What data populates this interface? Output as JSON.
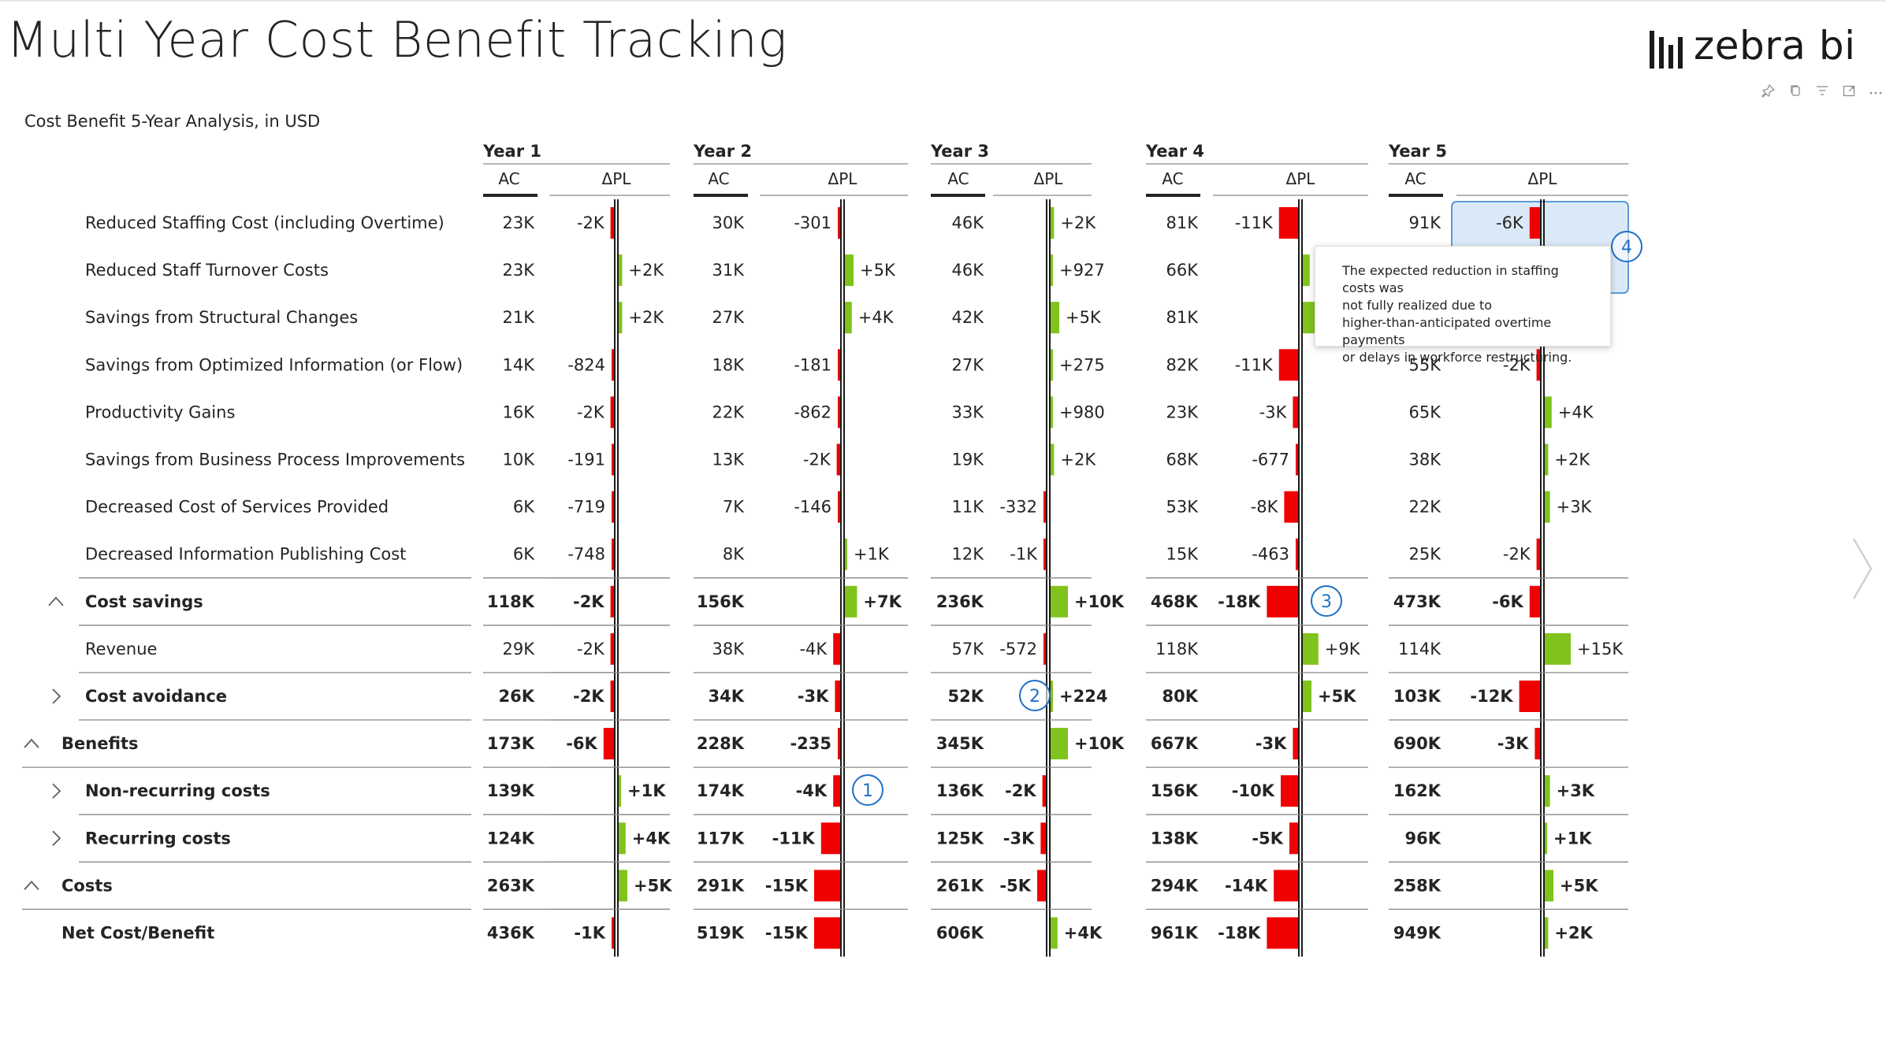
{
  "title": "Multi Year Cost Benefit Tracking",
  "logo": {
    "text": "zebra bi"
  },
  "visual_header": {
    "icons": [
      "pin-icon",
      "copy-icon",
      "filter-icon",
      "focus-mode-icon",
      "more-options-icon"
    ]
  },
  "subtitle": "Cost Benefit 5-Year Analysis, in USD",
  "column_labels": {
    "ac": "AC",
    "dpl": "ΔPL"
  },
  "years": [
    "Year 1",
    "Year 2",
    "Year 3",
    "Year 4",
    "Year 5"
  ],
  "rows": [
    {
      "label": "Reduced Staffing Cost (including Overtime)",
      "level": 2,
      "bold": false,
      "expand": "none",
      "sep": false,
      "cells": [
        {
          "ac": "23K",
          "dpl": "-2K",
          "v": -2
        },
        {
          "ac": "30K",
          "dpl": "-301",
          "v": -0.301
        },
        {
          "ac": "46K",
          "dpl": "+2K",
          "v": 2
        },
        {
          "ac": "81K",
          "dpl": "-11K",
          "v": -11
        },
        {
          "ac": "91K",
          "dpl": "-6K",
          "v": -6
        }
      ]
    },
    {
      "label": "Reduced Staff Turnover Costs",
      "level": 2,
      "bold": false,
      "expand": "none",
      "sep": false,
      "cells": [
        {
          "ac": "23K",
          "dpl": "+2K",
          "v": 2
        },
        {
          "ac": "31K",
          "dpl": "+5K",
          "v": 5
        },
        {
          "ac": "46K",
          "dpl": "+927",
          "v": 0.927
        },
        {
          "ac": "66K",
          "dpl": "+4K",
          "v": 4
        },
        {
          "ac": "",
          "dpl": "",
          "v": 0
        }
      ]
    },
    {
      "label": "Savings from Structural Changes",
      "level": 2,
      "bold": false,
      "expand": "none",
      "sep": false,
      "cells": [
        {
          "ac": "21K",
          "dpl": "+2K",
          "v": 2
        },
        {
          "ac": "27K",
          "dpl": "+4K",
          "v": 4
        },
        {
          "ac": "42K",
          "dpl": "+5K",
          "v": 5
        },
        {
          "ac": "81K",
          "dpl": "",
          "v": 12
        },
        {
          "ac": "",
          "dpl": "",
          "v": 0
        }
      ]
    },
    {
      "label": "Savings from Optimized Information (or Flow)",
      "level": 2,
      "bold": false,
      "expand": "none",
      "sep": false,
      "cells": [
        {
          "ac": "14K",
          "dpl": "-824",
          "v": -0.824
        },
        {
          "ac": "18K",
          "dpl": "-181",
          "v": -0.181
        },
        {
          "ac": "27K",
          "dpl": "+275",
          "v": 0.275
        },
        {
          "ac": "82K",
          "dpl": "-11K",
          "v": -11
        },
        {
          "ac": "55K",
          "dpl": "-2K",
          "v": -2
        }
      ]
    },
    {
      "label": "Productivity Gains",
      "level": 2,
      "bold": false,
      "expand": "none",
      "sep": false,
      "cells": [
        {
          "ac": "16K",
          "dpl": "-2K",
          "v": -2
        },
        {
          "ac": "22K",
          "dpl": "-862",
          "v": -0.862
        },
        {
          "ac": "33K",
          "dpl": "+980",
          "v": 0.98
        },
        {
          "ac": "23K",
          "dpl": "-3K",
          "v": -3
        },
        {
          "ac": "65K",
          "dpl": "+4K",
          "v": 4
        }
      ]
    },
    {
      "label": "Savings from Business Process Improvements",
      "level": 2,
      "bold": false,
      "expand": "none",
      "sep": false,
      "cells": [
        {
          "ac": "10K",
          "dpl": "-191",
          "v": -0.191
        },
        {
          "ac": "13K",
          "dpl": "-2K",
          "v": -2
        },
        {
          "ac": "19K",
          "dpl": "+2K",
          "v": 2
        },
        {
          "ac": "68K",
          "dpl": "-677",
          "v": -0.677
        },
        {
          "ac": "38K",
          "dpl": "+2K",
          "v": 2
        }
      ]
    },
    {
      "label": "Decreased Cost of Services Provided",
      "level": 2,
      "bold": false,
      "expand": "none",
      "sep": false,
      "cells": [
        {
          "ac": "6K",
          "dpl": "-719",
          "v": -0.719
        },
        {
          "ac": "7K",
          "dpl": "-146",
          "v": -0.146
        },
        {
          "ac": "11K",
          "dpl": "-332",
          "v": -0.332
        },
        {
          "ac": "53K",
          "dpl": "-8K",
          "v": -8
        },
        {
          "ac": "22K",
          "dpl": "+3K",
          "v": 3
        }
      ]
    },
    {
      "label": "Decreased Information Publishing Cost",
      "level": 2,
      "bold": false,
      "expand": "none",
      "sep": true,
      "cells": [
        {
          "ac": "6K",
          "dpl": "-748",
          "v": -0.748
        },
        {
          "ac": "8K",
          "dpl": "+1K",
          "v": 1
        },
        {
          "ac": "12K",
          "dpl": "-1K",
          "v": -1
        },
        {
          "ac": "15K",
          "dpl": "-463",
          "v": -0.463
        },
        {
          "ac": "25K",
          "dpl": "-2K",
          "v": -2
        }
      ]
    },
    {
      "label": "Cost savings",
      "level": 1,
      "bold": true,
      "expand": "expanded",
      "sep": true,
      "cells": [
        {
          "ac": "118K",
          "dpl": "-2K",
          "v": -2
        },
        {
          "ac": "156K",
          "dpl": "+7K",
          "v": 7
        },
        {
          "ac": "236K",
          "dpl": "+10K",
          "v": 10
        },
        {
          "ac": "468K",
          "dpl": "-18K",
          "v": -18
        },
        {
          "ac": "473K",
          "dpl": "-6K",
          "v": -6
        }
      ]
    },
    {
      "label": "Revenue",
      "level": 2,
      "bold": false,
      "expand": "none",
      "sep": true,
      "cells": [
        {
          "ac": "29K",
          "dpl": "-2K",
          "v": -2
        },
        {
          "ac": "38K",
          "dpl": "-4K",
          "v": -4
        },
        {
          "ac": "57K",
          "dpl": "-572",
          "v": -0.572
        },
        {
          "ac": "118K",
          "dpl": "+9K",
          "v": 9
        },
        {
          "ac": "114K",
          "dpl": "+15K",
          "v": 15
        }
      ]
    },
    {
      "label": "Cost avoidance",
      "level": 1,
      "bold": true,
      "expand": "collapsed",
      "sep": true,
      "cells": [
        {
          "ac": "26K",
          "dpl": "-2K",
          "v": -2
        },
        {
          "ac": "34K",
          "dpl": "-3K",
          "v": -3
        },
        {
          "ac": "52K",
          "dpl": "+224",
          "v": 0.224
        },
        {
          "ac": "80K",
          "dpl": "+5K",
          "v": 5
        },
        {
          "ac": "103K",
          "dpl": "-12K",
          "v": -12
        }
      ]
    },
    {
      "label": "Benefits",
      "level": 0,
      "bold": true,
      "expand": "expanded",
      "sep": true,
      "cells": [
        {
          "ac": "173K",
          "dpl": "-6K",
          "v": -6
        },
        {
          "ac": "228K",
          "dpl": "-235",
          "v": -0.235
        },
        {
          "ac": "345K",
          "dpl": "+10K",
          "v": 10
        },
        {
          "ac": "667K",
          "dpl": "-3K",
          "v": -3
        },
        {
          "ac": "690K",
          "dpl": "-3K",
          "v": -3
        }
      ]
    },
    {
      "label": "Non-recurring costs",
      "level": 1,
      "bold": true,
      "expand": "collapsed",
      "sep": true,
      "cells": [
        {
          "ac": "139K",
          "dpl": "+1K",
          "v": 1
        },
        {
          "ac": "174K",
          "dpl": "-4K",
          "v": -4
        },
        {
          "ac": "136K",
          "dpl": "-2K",
          "v": -2
        },
        {
          "ac": "156K",
          "dpl": "-10K",
          "v": -10
        },
        {
          "ac": "162K",
          "dpl": "+3K",
          "v": 3
        }
      ]
    },
    {
      "label": "Recurring costs",
      "level": 1,
      "bold": true,
      "expand": "collapsed",
      "sep": true,
      "cells": [
        {
          "ac": "124K",
          "dpl": "+4K",
          "v": 4
        },
        {
          "ac": "117K",
          "dpl": "-11K",
          "v": -11
        },
        {
          "ac": "125K",
          "dpl": "-3K",
          "v": -3
        },
        {
          "ac": "138K",
          "dpl": "-5K",
          "v": -5
        },
        {
          "ac": "96K",
          "dpl": "+1K",
          "v": 1
        }
      ]
    },
    {
      "label": "Costs",
      "level": 0,
      "bold": true,
      "expand": "expanded",
      "sep": true,
      "cells": [
        {
          "ac": "263K",
          "dpl": "+5K",
          "v": 5
        },
        {
          "ac": "291K",
          "dpl": "-15K",
          "v": -15
        },
        {
          "ac": "261K",
          "dpl": "-5K",
          "v": -5
        },
        {
          "ac": "294K",
          "dpl": "-14K",
          "v": -14
        },
        {
          "ac": "258K",
          "dpl": "+5K",
          "v": 5
        }
      ]
    },
    {
      "label": "Net Cost/Benefit",
      "level": 0,
      "bold": true,
      "expand": "none",
      "sep": false,
      "cells": [
        {
          "ac": "436K",
          "dpl": "-1K",
          "v": -1
        },
        {
          "ac": "519K",
          "dpl": "-15K",
          "v": -15
        },
        {
          "ac": "606K",
          "dpl": "+4K",
          "v": 4
        },
        {
          "ac": "961K",
          "dpl": "-18K",
          "v": -18
        },
        {
          "ac": "949K",
          "dpl": "+2K",
          "v": 2
        }
      ]
    }
  ],
  "comments": [
    {
      "number": "1",
      "year": 1,
      "row": 12
    },
    {
      "number": "2",
      "year": 2,
      "row": 10
    },
    {
      "number": "3",
      "year": 3,
      "row": 8
    },
    {
      "number": "4",
      "year": 4,
      "row": 0
    }
  ],
  "tooltip": {
    "lines": [
      "The expected reduction in staffing costs was",
      "not fully realized due to",
      "higher-than-anticipated overtime payments",
      "or delays in workforce restructuring."
    ]
  },
  "colors": {
    "positive": "#7fc31c",
    "negative": "#f00000",
    "axis": "#1a1a1a",
    "comment": "#1f6fc5",
    "highlight": "#dbe8f7",
    "highlight_border": "#5b9bd5"
  }
}
